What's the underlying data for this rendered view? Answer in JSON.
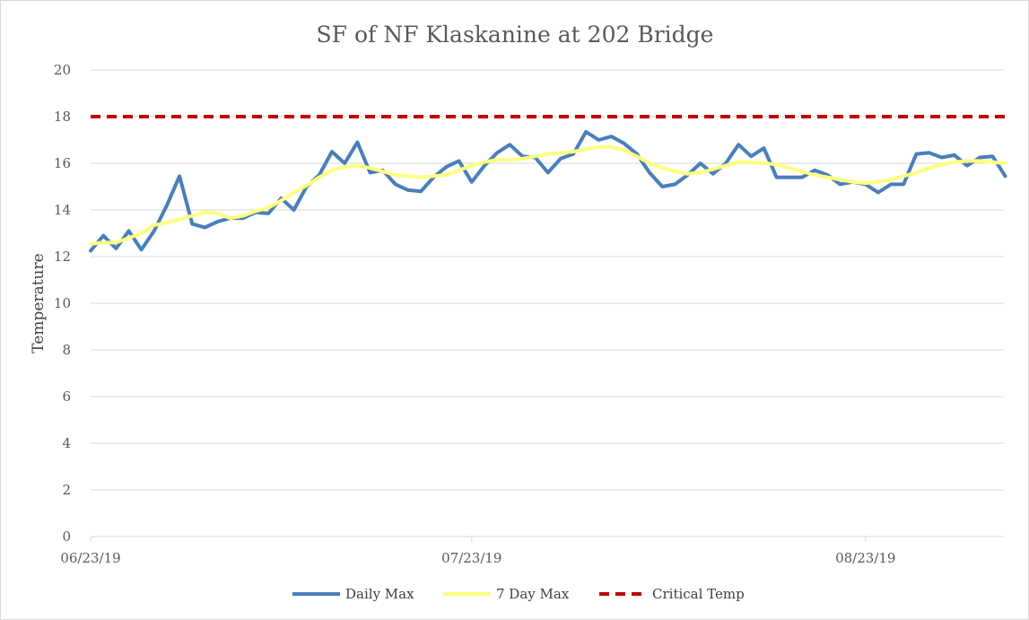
{
  "chart_data": {
    "type": "line",
    "title": "SF of NF Klaskanine at 202 Bridge",
    "ylabel": "Temperature",
    "xlabel": "",
    "ylim": [
      0,
      20
    ],
    "yticks": [
      0,
      2,
      4,
      6,
      8,
      10,
      12,
      14,
      16,
      18,
      20
    ],
    "xticks": [
      "06/23/19",
      "07/23/19",
      "08/23/19"
    ],
    "grid": "horizontal",
    "legend_position": "bottom",
    "colors": {
      "daily": "#4a7ebb",
      "sevenday": "#ffff80",
      "critical": "#c00000",
      "grid": "#d9d9d9",
      "text": "#595959"
    },
    "series": [
      {
        "name": "Daily Max",
        "style": "solid",
        "x": [
          "06/23/19",
          "06/24/19",
          "06/25/19",
          "06/26/19",
          "06/27/19",
          "06/28/19",
          "06/29/19",
          "06/30/19",
          "07/01/19",
          "07/02/19",
          "07/03/19",
          "07/04/19",
          "07/05/19",
          "07/06/19",
          "07/07/19",
          "07/08/19",
          "07/09/19",
          "07/10/19",
          "07/11/19",
          "07/12/19",
          "07/13/19",
          "07/14/19",
          "07/15/19",
          "07/16/19",
          "07/17/19",
          "07/18/19",
          "07/19/19",
          "07/20/19",
          "07/21/19",
          "07/22/19",
          "07/23/19",
          "07/24/19",
          "07/25/19",
          "07/26/19",
          "07/27/19",
          "07/28/19",
          "07/29/19",
          "07/30/19",
          "07/31/19",
          "08/01/19",
          "08/02/19",
          "08/03/19",
          "08/04/19",
          "08/05/19",
          "08/06/19",
          "08/07/19",
          "08/08/19",
          "08/09/19",
          "08/10/19",
          "08/11/19",
          "08/12/19",
          "08/13/19",
          "08/14/19",
          "08/15/19",
          "08/16/19",
          "08/17/19",
          "08/18/19",
          "08/19/19",
          "08/20/19",
          "08/21/19",
          "08/22/19",
          "08/23/19",
          "08/24/19",
          "08/25/19",
          "08/26/19",
          "08/27/19",
          "08/28/19",
          "08/29/19",
          "08/30/19",
          "08/31/19",
          "09/01/19",
          "09/02/19",
          "09/03/19"
        ],
        "values": [
          12.25,
          12.9,
          12.35,
          13.1,
          12.3,
          13.1,
          14.2,
          15.45,
          13.4,
          13.25,
          13.5,
          13.65,
          13.65,
          13.9,
          13.85,
          14.5,
          14.0,
          15.0,
          15.5,
          16.5,
          16.0,
          16.9,
          15.6,
          15.7,
          15.1,
          14.85,
          14.8,
          15.4,
          15.85,
          16.1,
          15.2,
          15.9,
          16.45,
          16.8,
          16.3,
          16.25,
          15.6,
          16.2,
          16.4,
          17.35,
          17.0,
          17.15,
          16.85,
          16.4,
          15.6,
          15.0,
          15.1,
          15.5,
          16.0,
          15.55,
          16.0,
          16.8,
          16.3,
          16.65,
          15.4,
          15.4,
          15.4,
          15.7,
          15.5,
          15.1,
          15.2,
          15.1,
          14.75,
          15.1,
          15.1,
          16.4,
          16.45,
          16.25,
          16.35,
          15.9,
          16.25,
          16.3,
          15.45
        ]
      },
      {
        "name": "7 Day Max",
        "style": "solid",
        "x": [
          "06/23/19",
          "06/24/19",
          "06/25/19",
          "06/26/19",
          "06/27/19",
          "06/28/19",
          "06/29/19",
          "06/30/19",
          "07/01/19",
          "07/02/19",
          "07/03/19",
          "07/04/19",
          "07/05/19",
          "07/06/19",
          "07/07/19",
          "07/08/19",
          "07/09/19",
          "07/10/19",
          "07/11/19",
          "07/12/19",
          "07/13/19",
          "07/14/19",
          "07/15/19",
          "07/16/19",
          "07/17/19",
          "07/18/19",
          "07/19/19",
          "07/20/19",
          "07/21/19",
          "07/22/19",
          "07/23/19",
          "07/24/19",
          "07/25/19",
          "07/26/19",
          "07/27/19",
          "07/28/19",
          "07/29/19",
          "07/30/19",
          "07/31/19",
          "08/01/19",
          "08/02/19",
          "08/03/19",
          "08/04/19",
          "08/05/19",
          "08/06/19",
          "08/07/19",
          "08/08/19",
          "08/09/19",
          "08/10/19",
          "08/11/19",
          "08/12/19",
          "08/13/19",
          "08/14/19",
          "08/15/19",
          "08/16/19",
          "08/17/19",
          "08/18/19",
          "08/19/19",
          "08/20/19",
          "08/21/19",
          "08/22/19",
          "08/23/19",
          "08/24/19",
          "08/25/19",
          "08/26/19",
          "08/27/19",
          "08/28/19",
          "08/29/19",
          "08/30/19",
          "08/31/19",
          "09/01/19",
          "09/02/19",
          "09/03/19"
        ],
        "values": [
          12.55,
          12.6,
          12.6,
          12.8,
          13.0,
          13.35,
          13.45,
          13.6,
          13.75,
          13.9,
          13.85,
          13.65,
          13.75,
          13.95,
          14.1,
          14.4,
          14.75,
          15.05,
          15.4,
          15.7,
          15.85,
          15.9,
          15.8,
          15.65,
          15.5,
          15.45,
          15.4,
          15.45,
          15.5,
          15.7,
          15.9,
          16.05,
          16.15,
          16.15,
          16.2,
          16.3,
          16.4,
          16.45,
          16.5,
          16.6,
          16.7,
          16.7,
          16.55,
          16.3,
          16.0,
          15.8,
          15.65,
          15.55,
          15.6,
          15.75,
          15.9,
          16.05,
          16.05,
          16.0,
          15.95,
          15.8,
          15.65,
          15.5,
          15.4,
          15.3,
          15.2,
          15.15,
          15.2,
          15.3,
          15.45,
          15.6,
          15.8,
          15.95,
          16.05,
          16.1,
          16.1,
          16.05,
          16.0
        ]
      },
      {
        "name": "Critical Temp",
        "style": "dashed",
        "x": [
          "06/23/19",
          "09/03/19"
        ],
        "values": [
          18,
          18
        ]
      }
    ]
  }
}
